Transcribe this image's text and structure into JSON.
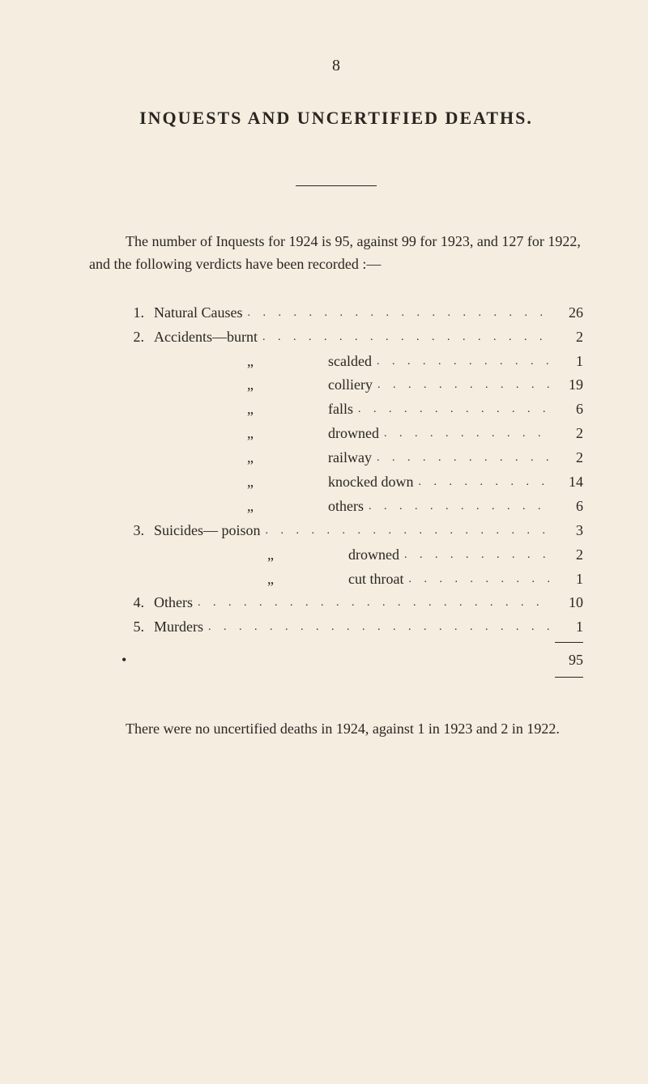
{
  "page_number": "8",
  "title": "INQUESTS AND UNCERTIFIED DEATHS.",
  "intro": "The number of Inquests for 1924 is 95, against 99 for 1923, and 127 for 1922, and the following verdicts have been recorded :—",
  "items": [
    {
      "num": "1.",
      "label": "Natural Causes",
      "value": "26"
    },
    {
      "num": "2.",
      "label": "Accidents—burnt",
      "value": "2"
    },
    {
      "num": "",
      "prefix": "„",
      "label": "scalded",
      "value": "1"
    },
    {
      "num": "",
      "prefix": "„",
      "label": "colliery",
      "value": "19"
    },
    {
      "num": "",
      "prefix": "„",
      "label": "falls",
      "value": "6"
    },
    {
      "num": "",
      "prefix": "„",
      "label": "drowned",
      "value": "2"
    },
    {
      "num": "",
      "prefix": "„",
      "label": "railway",
      "value": "2"
    },
    {
      "num": "",
      "prefix": "„",
      "label": "knocked down",
      "value": "14"
    },
    {
      "num": "",
      "prefix": "„",
      "label": "others",
      "value": "6"
    },
    {
      "num": "3.",
      "label": "Suicides— poison",
      "value": "3"
    },
    {
      "num": "",
      "prefix": "„",
      "label2": "drowned",
      "value": "2"
    },
    {
      "num": "",
      "prefix": "„",
      "label2": "cut throat",
      "value": "1"
    },
    {
      "num": "4.",
      "label": "Others",
      "value": "10"
    },
    {
      "num": "5.",
      "label": "Murders",
      "value": "1"
    }
  ],
  "total": "95",
  "outro": "There were no uncertified deaths in 1924, against 1 in 1923 and 2 in 1922."
}
